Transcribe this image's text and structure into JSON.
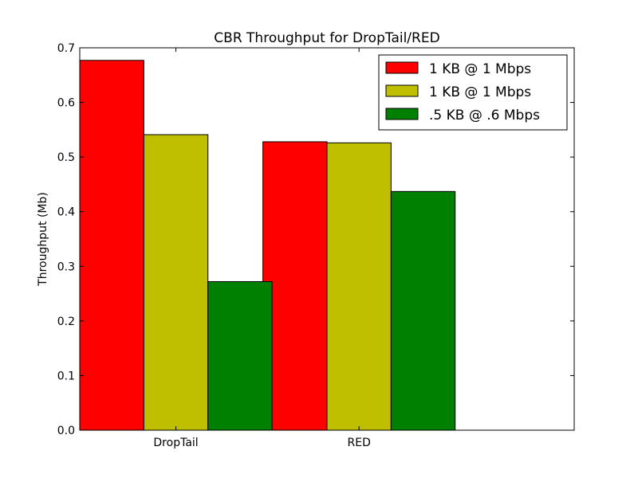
{
  "chart_data": {
    "type": "bar",
    "title": "CBR Throughput for DropTail/RED",
    "xlabel": "",
    "ylabel": "Throughput (Mb)",
    "categories": [
      "DropTail",
      "RED"
    ],
    "series": [
      {
        "name": "1 KB @ 1 Mbps",
        "color": "#ff0000",
        "values": [
          0.677,
          0.528
        ]
      },
      {
        "name": "1 KB @ 1 Mbps",
        "color": "#bfbf00",
        "values": [
          0.541,
          0.526
        ]
      },
      {
        "name": ".5 KB @ .6 Mbps",
        "color": "#008000",
        "values": [
          0.272,
          0.437
        ]
      }
    ],
    "ylim": [
      0,
      0.7
    ],
    "yticks": [
      "0.0",
      "0.1",
      "0.2",
      "0.3",
      "0.4",
      "0.5",
      "0.6",
      "0.7"
    ],
    "grid": false,
    "legend_position": "top-right"
  }
}
